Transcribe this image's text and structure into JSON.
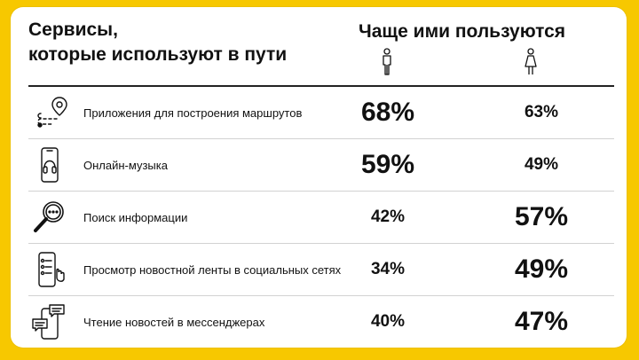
{
  "title": "Сервисы,\nкоторые используют в пути",
  "column_header": "Чаще ими пользуются",
  "gender_icons": [
    "male-person-icon",
    "female-person-icon"
  ],
  "accent_color": "#f7c800",
  "rows": [
    {
      "icon": "route-pin-icon",
      "label": "Приложения для построения маршрутов",
      "male": "68%",
      "female": "63%",
      "emphasis": "male"
    },
    {
      "icon": "phone-headphones-icon",
      "label": "Онлайн-музыка",
      "male": "59%",
      "female": "49%",
      "emphasis": "male"
    },
    {
      "icon": "magnifier-icon",
      "label": "Поиск информации",
      "male": "42%",
      "female": "57%",
      "emphasis": "female"
    },
    {
      "icon": "phone-feed-icon",
      "label": "Просмотр новостной ленты в социальных сетях",
      "male": "34%",
      "female": "49%",
      "emphasis": "female"
    },
    {
      "icon": "phone-chat-icon",
      "label": "Чтение новостей в мессенджерах",
      "male": "40%",
      "female": "47%",
      "emphasis": "female"
    }
  ]
}
